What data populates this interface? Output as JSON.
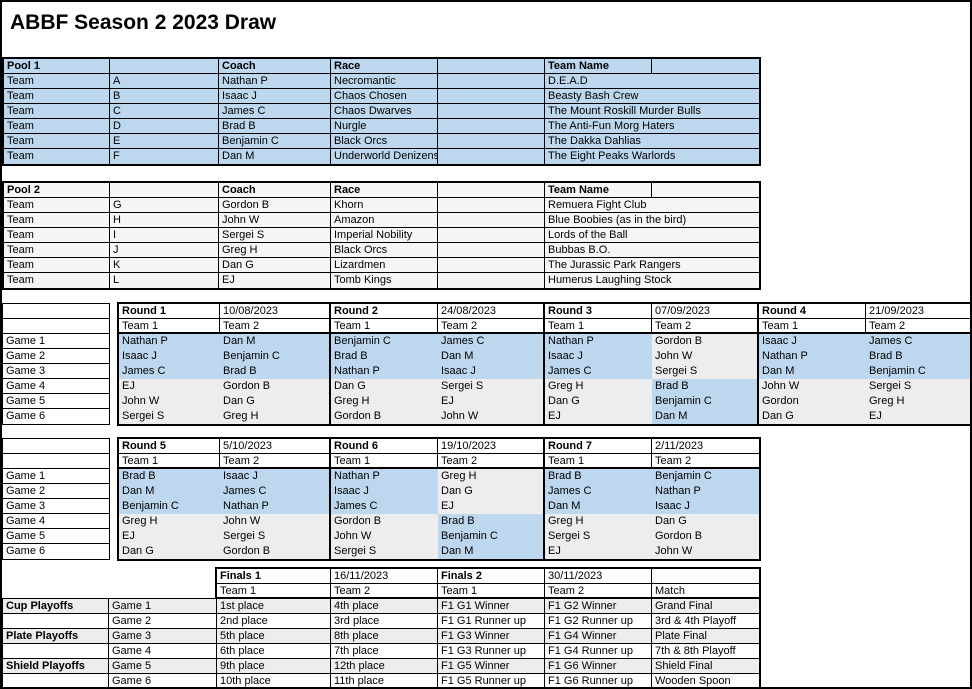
{
  "title": "ABBF Season 2 2023 Draw",
  "colors": {
    "pool1_fill": "#BDD7EE",
    "pool2_fill": "#F5F5F5",
    "game_gray": "#EDEDED",
    "border": "#000000"
  },
  "team_row_label": "Team",
  "pool_headers": {
    "coach": "Coach",
    "race": "Race",
    "team_name": "Team Name"
  },
  "team_headers": [
    "Team 1",
    "Team 2"
  ],
  "game_labels": [
    "Game 1",
    "Game 2",
    "Game 3",
    "Game 4",
    "Game 5",
    "Game 6"
  ],
  "pools": [
    {
      "name": "Pool 1",
      "teams": [
        {
          "letter": "A",
          "coach": "Nathan P",
          "race": "Necromantic",
          "team_name": "D.E.A.D"
        },
        {
          "letter": "B",
          "coach": "Isaac J",
          "race": "Chaos Chosen",
          "team_name": "Beasty Bash Crew"
        },
        {
          "letter": "C",
          "coach": "James C",
          "race": "Chaos Dwarves",
          "team_name": "The Mount Roskill Murder Bulls"
        },
        {
          "letter": "D",
          "coach": "Brad B",
          "race": "Nurgle",
          "team_name": "The Anti-Fun Morg Haters"
        },
        {
          "letter": "E",
          "coach": "Benjamin C",
          "race": "Black Orcs",
          "team_name": "The Dakka Dahlias"
        },
        {
          "letter": "F",
          "coach": "Dan M",
          "race": "Underworld Denizens",
          "team_name": "The Eight Peaks Warlords"
        }
      ]
    },
    {
      "name": "Pool 2",
      "teams": [
        {
          "letter": "G",
          "coach": "Gordon B",
          "race": "Khorn",
          "team_name": "Remuera Fight Club"
        },
        {
          "letter": "H",
          "coach": "John W",
          "race": "Amazon",
          "team_name": "Blue Boobies (as in the bird)"
        },
        {
          "letter": "I",
          "coach": "Sergei S",
          "race": "Imperial Nobility",
          "team_name": "Lords of the Ball"
        },
        {
          "letter": "J",
          "coach": "Greg H",
          "race": "Black Orcs",
          "team_name": "Bubbas B.O."
        },
        {
          "letter": "K",
          "coach": "Dan G",
          "race": "Lizardmen",
          "team_name": "The Jurassic Park Rangers"
        },
        {
          "letter": "L",
          "coach": "EJ",
          "race": "Tomb Kings",
          "team_name": "Humerus Laughing Stock"
        }
      ]
    }
  ],
  "round_sections": [
    {
      "rounds": [
        {
          "name": "Round 1",
          "date": "10/08/2023",
          "games": [
            {
              "t1": "Nathan P",
              "p1": "b",
              "t2": "Dan M",
              "p2": "b"
            },
            {
              "t1": "Isaac J",
              "p1": "b",
              "t2": "Benjamin C",
              "p2": "b"
            },
            {
              "t1": "James C",
              "p1": "b",
              "t2": "Brad B",
              "p2": "b"
            },
            {
              "t1": "EJ",
              "p1": "g",
              "t2": "Gordon B",
              "p2": "g"
            },
            {
              "t1": "John W",
              "p1": "g",
              "t2": "Dan G",
              "p2": "g"
            },
            {
              "t1": "Sergei S",
              "p1": "g",
              "t2": "Greg H",
              "p2": "g"
            }
          ]
        },
        {
          "name": "Round 2",
          "date": "24/08/2023",
          "games": [
            {
              "t1": "Benjamin C",
              "p1": "b",
              "t2": "James C",
              "p2": "b"
            },
            {
              "t1": "Brad B",
              "p1": "b",
              "t2": "Dan M",
              "p2": "b"
            },
            {
              "t1": "Nathan P",
              "p1": "b",
              "t2": "Isaac J",
              "p2": "b"
            },
            {
              "t1": "Dan G",
              "p1": "g",
              "t2": "Sergei S",
              "p2": "g"
            },
            {
              "t1": "Greg H",
              "p1": "g",
              "t2": "EJ",
              "p2": "g"
            },
            {
              "t1": "Gordon B",
              "p1": "g",
              "t2": "John W",
              "p2": "g"
            }
          ]
        },
        {
          "name": "Round 3",
          "date": "07/09/2023",
          "games": [
            {
              "t1": "Nathan P",
              "p1": "b",
              "t2": "Gordon B",
              "p2": "g"
            },
            {
              "t1": "Isaac J",
              "p1": "b",
              "t2": "John W",
              "p2": "g"
            },
            {
              "t1": "James C",
              "p1": "b",
              "t2": "Sergei S",
              "p2": "g"
            },
            {
              "t1": "Greg H",
              "p1": "g",
              "t2": "Brad B",
              "p2": "b"
            },
            {
              "t1": "Dan G",
              "p1": "g",
              "t2": "Benjamin C",
              "p2": "b"
            },
            {
              "t1": "EJ",
              "p1": "g",
              "t2": "Dan M",
              "p2": "b"
            }
          ]
        },
        {
          "name": "Round 4",
          "date": "21/09/2023",
          "games": [
            {
              "t1": "Isaac J",
              "p1": "b",
              "t2": "James C",
              "p2": "b"
            },
            {
              "t1": "Nathan P",
              "p1": "b",
              "t2": "Brad B",
              "p2": "b"
            },
            {
              "t1": "Dan M",
              "p1": "b",
              "t2": "Benjamin C",
              "p2": "b"
            },
            {
              "t1": "John W",
              "p1": "g",
              "t2": "Sergei S",
              "p2": "g"
            },
            {
              "t1": "Gordon",
              "p1": "g",
              "t2": "Greg H",
              "p2": "g"
            },
            {
              "t1": "Dan G",
              "p1": "g",
              "t2": "EJ",
              "p2": "g"
            }
          ]
        }
      ]
    },
    {
      "rounds": [
        {
          "name": "Round 5",
          "date": "5/10/2023",
          "games": [
            {
              "t1": "Brad B",
              "p1": "b",
              "t2": "Isaac J",
              "p2": "b"
            },
            {
              "t1": "Dan M",
              "p1": "b",
              "t2": "James C",
              "p2": "b"
            },
            {
              "t1": "Benjamin C",
              "p1": "b",
              "t2": "Nathan P",
              "p2": "b"
            },
            {
              "t1": "Greg H",
              "p1": "g",
              "t2": "John W",
              "p2": "g"
            },
            {
              "t1": "EJ",
              "p1": "g",
              "t2": "Sergei S",
              "p2": "g"
            },
            {
              "t1": "Dan G",
              "p1": "g",
              "t2": "Gordon B",
              "p2": "g"
            }
          ]
        },
        {
          "name": "Round 6",
          "date": "19/10/2023",
          "games": [
            {
              "t1": "Nathan P",
              "p1": "b",
              "t2": "Greg H",
              "p2": "g"
            },
            {
              "t1": "Isaac J",
              "p1": "b",
              "t2": "Dan G",
              "p2": "g"
            },
            {
              "t1": "James C",
              "p1": "b",
              "t2": "EJ",
              "p2": "g"
            },
            {
              "t1": "Gordon B",
              "p1": "g",
              "t2": "Brad B",
              "p2": "b"
            },
            {
              "t1": "John W",
              "p1": "g",
              "t2": "Benjamin C",
              "p2": "b"
            },
            {
              "t1": "Sergei S",
              "p1": "g",
              "t2": "Dan M",
              "p2": "b"
            }
          ]
        },
        {
          "name": "Round 7",
          "date": "2/11/2023",
          "games": [
            {
              "t1": "Brad B",
              "p1": "b",
              "t2": "Benjamin C",
              "p2": "b"
            },
            {
              "t1": "James C",
              "p1": "b",
              "t2": "Nathan P",
              "p2": "b"
            },
            {
              "t1": "Dan M",
              "p1": "b",
              "t2": "Isaac J",
              "p2": "b"
            },
            {
              "t1": "Greg H",
              "p1": "g",
              "t2": "Dan G",
              "p2": "g"
            },
            {
              "t1": "Sergei S",
              "p1": "g",
              "t2": "Gordon B",
              "p2": "g"
            },
            {
              "t1": "EJ",
              "p1": "g",
              "t2": "John W",
              "p2": "g"
            }
          ]
        }
      ]
    }
  ],
  "finals": {
    "blocks": [
      {
        "name": "Finals 1",
        "date": "16/11/2023"
      },
      {
        "name": "Finals 2",
        "date": "30/11/2023"
      }
    ],
    "match_header": "Match",
    "group_labels": [
      "Cup Playoffs",
      "",
      "Plate Playoffs",
      "",
      "Shield Playoffs",
      ""
    ],
    "rows": [
      {
        "cells": [
          "1st place",
          "4th place",
          "F1 G1 Winner",
          "F1 G2 Winner",
          "Grand Final"
        ]
      },
      {
        "cells": [
          "2nd place",
          "3rd place",
          "F1 G1 Runner up",
          "F1 G2 Runner up",
          "3rd & 4th Playoff"
        ]
      },
      {
        "cells": [
          "5th place",
          "8th place",
          "F1 G3 Winner",
          "F1 G4 Winner",
          "Plate Final"
        ]
      },
      {
        "cells": [
          "6th place",
          "7th place",
          "F1 G3 Runner up",
          "F1 G4 Runner up",
          "7th & 8th Playoff"
        ]
      },
      {
        "cells": [
          "9th place",
          "12th place",
          "F1 G5 Winner",
          "F1 G6 Winner",
          "Shield Final"
        ]
      },
      {
        "cells": [
          "10th place",
          "11th place",
          "F1 G5 Runner up",
          "F1 G6 Runner up",
          "Wooden Spoon"
        ]
      }
    ]
  }
}
